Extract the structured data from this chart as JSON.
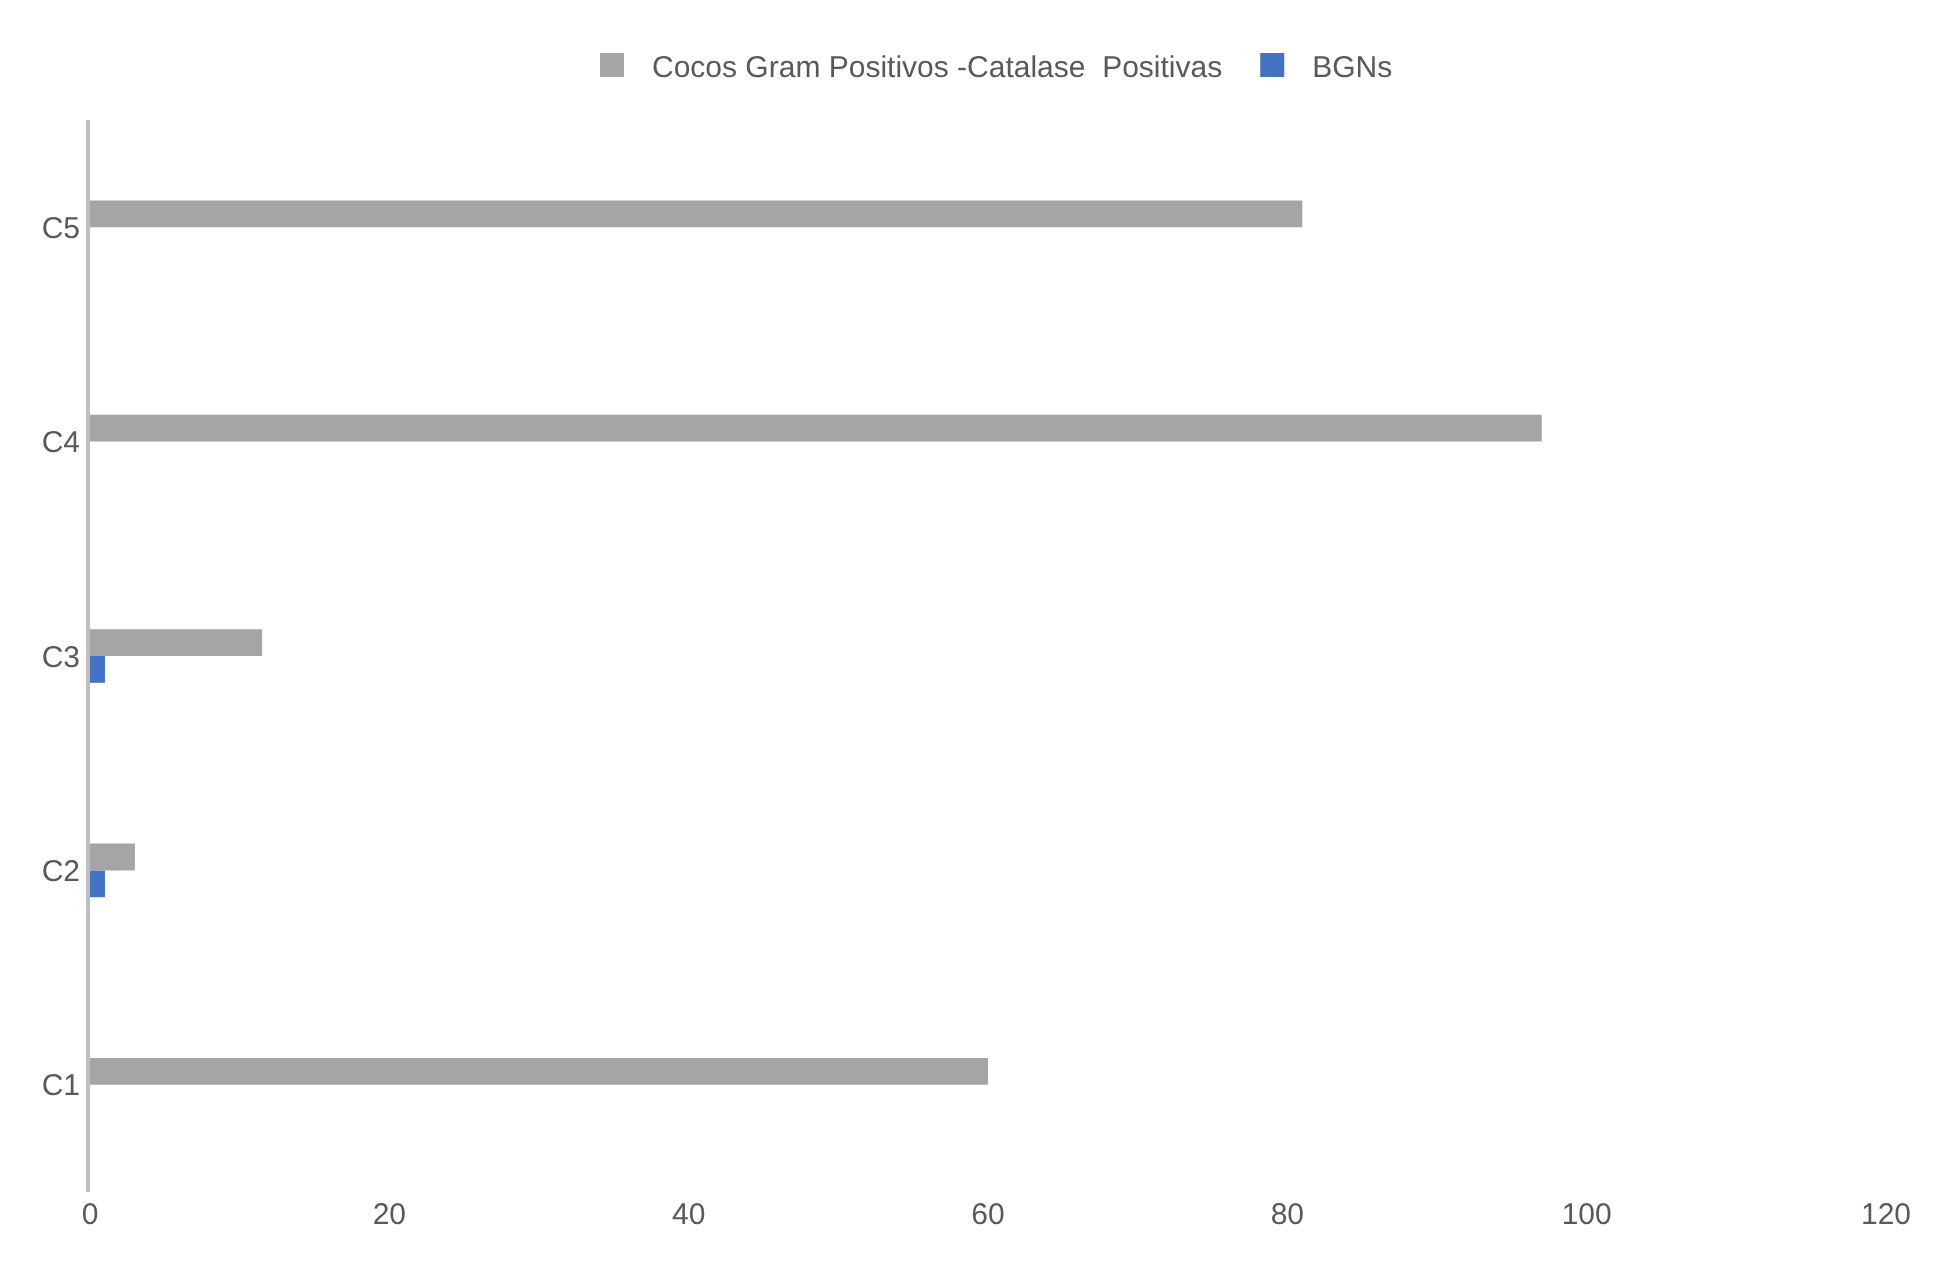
{
  "chart_data": {
    "type": "bar",
    "orientation": "horizontal",
    "categories": [
      "C5",
      "C4",
      "C3",
      "C2",
      "C1"
    ],
    "series": [
      {
        "name": "Cocos Gram Positivos -Catalase  Positivas",
        "color": "#a5a5a5",
        "values": [
          81,
          97,
          11.5,
          3,
          60
        ]
      },
      {
        "name": "BGNs",
        "color": "#4472c4",
        "values": [
          0,
          0,
          1,
          1,
          0
        ]
      }
    ],
    "xlim": [
      0,
      120
    ],
    "xticks": [
      0,
      20,
      40,
      60,
      80,
      100,
      120
    ],
    "legend": "top"
  }
}
